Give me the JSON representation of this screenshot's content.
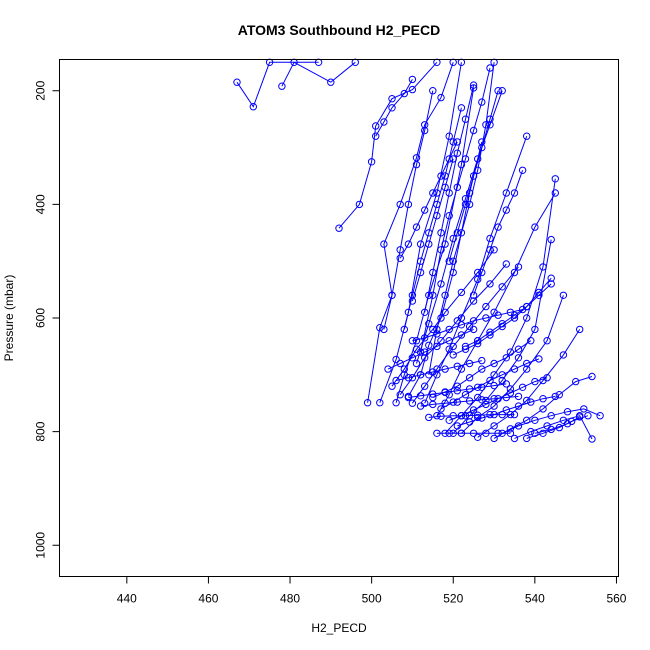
{
  "chart_data": {
    "type": "line",
    "title": "ATOM3 Southbound H2_PECD",
    "xlabel": "H2_PECD",
    "ylabel": "Pressure (mbar)",
    "xlim": [
      423.5,
      560.5
    ],
    "ylim": [
      1055,
      145
    ],
    "y_axis_inverted": true,
    "x_ticks": [
      440,
      460,
      480,
      500,
      520,
      540,
      560
    ],
    "y_ticks": [
      200,
      400,
      600,
      800,
      1000
    ],
    "grid": false,
    "legend": "none",
    "line_color": "#0000ff",
    "marker": "open-circle",
    "series": [
      {
        "x": [
          467,
          471,
          475,
          487
        ],
        "y": [
          185,
          228,
          150,
          150
        ]
      },
      {
        "x": [
          478,
          481,
          490,
          496
        ],
        "y": [
          192,
          150,
          185,
          150
        ]
      },
      {
        "x": [
          492,
          497,
          500,
          501,
          505,
          510,
          516
        ],
        "y": [
          442,
          400,
          325,
          262,
          214,
          198,
          150
        ]
      },
      {
        "x": [
          499,
          502,
          505,
          503,
          507,
          511,
          513,
          517,
          520
        ],
        "y": [
          749,
          617,
          560,
          470,
          400,
          318,
          260,
          212,
          150
        ]
      },
      {
        "x": [
          502,
          506,
          509,
          512,
          516,
          519,
          522
        ],
        "y": [
          749,
          673,
          590,
          470,
          380,
          280,
          150
        ]
      },
      {
        "x": [
          506,
          508,
          511,
          514,
          518,
          522,
          525
        ],
        "y": [
          749,
          700,
          640,
          560,
          470,
          330,
          195
        ]
      },
      {
        "x": [
          509,
          512,
          514,
          517,
          520,
          524,
          527
        ],
        "y": [
          738,
          700,
          648,
          600,
          520,
          380,
          290
        ]
      },
      {
        "x": [
          513,
          516,
          519,
          522,
          526,
          529,
          533,
          538
        ],
        "y": [
          750,
          700,
          655,
          600,
          532,
          460,
          380,
          280
        ]
      },
      {
        "x": [
          516,
          519,
          522,
          526,
          530,
          535,
          540,
          545
        ],
        "y": [
          772,
          735,
          690,
          640,
          590,
          520,
          440,
          380
        ]
      },
      {
        "x": [
          518,
          522,
          526,
          530,
          534,
          538,
          542,
          545
        ],
        "y": [
          803,
          772,
          740,
          700,
          660,
          600,
          510,
          355
        ]
      },
      {
        "x": [
          520,
          524,
          528,
          532,
          536,
          540,
          544
        ],
        "y": [
          803,
          772,
          745,
          710,
          670,
          620,
          462
        ]
      },
      {
        "x": [
          522,
          526,
          530,
          534,
          538,
          543,
          547
        ],
        "y": [
          803,
          775,
          755,
          725,
          690,
          640,
          560
        ]
      },
      {
        "x": [
          526,
          530,
          534,
          538,
          542,
          547,
          551
        ],
        "y": [
          810,
          790,
          770,
          745,
          710,
          665,
          620
        ]
      },
      {
        "x": [
          530,
          534,
          538,
          542,
          546,
          550,
          554
        ],
        "y": [
          812,
          795,
          780,
          760,
          735,
          712,
          703
        ]
      },
      {
        "x": [
          532,
          536,
          540,
          544,
          548,
          552,
          556
        ],
        "y": [
          803,
          790,
          780,
          772,
          765,
          760,
          772
        ]
      },
      {
        "x": [
          535,
          539,
          543,
          547,
          551,
          554
        ],
        "y": [
          812,
          800,
          790,
          780,
          772,
          813
        ]
      },
      {
        "x": [
          538,
          542,
          546,
          549,
          553
        ],
        "y": [
          812,
          803,
          793,
          782,
          772
        ]
      },
      {
        "x": [
          540,
          544,
          548,
          551
        ],
        "y": [
          803,
          796,
          786,
          774
        ]
      },
      {
        "x": [
          505,
          508,
          511,
          515,
          518,
          522,
          526,
          530
        ],
        "y": [
          720,
          690,
          655,
          620,
          590,
          555,
          520,
          480
        ]
      },
      {
        "x": [
          507,
          510,
          513,
          517,
          521,
          525,
          529,
          533
        ],
        "y": [
          735,
          705,
          670,
          640,
          605,
          570,
          540,
          505
        ]
      },
      {
        "x": [
          510,
          513,
          516,
          520,
          524,
          528,
          532,
          536
        ],
        "y": [
          750,
          720,
          690,
          650,
          615,
          580,
          545,
          510
        ]
      },
      {
        "x": [
          511,
          514,
          517,
          520,
          523,
          526,
          529,
          532
        ],
        "y": [
          680,
          610,
          540,
          460,
          390,
          320,
          260,
          200
        ]
      },
      {
        "x": [
          512,
          515,
          517,
          519,
          521,
          523,
          525,
          527,
          529
        ],
        "y": [
          660,
          560,
          480,
          420,
          370,
          320,
          270,
          220,
          160
        ]
      },
      {
        "x": [
          514,
          516,
          518,
          520,
          522,
          524,
          526,
          528,
          530
        ],
        "y": [
          700,
          620,
          560,
          500,
          450,
          400,
          340,
          260,
          150
        ]
      },
      {
        "x": [
          508,
          510,
          512,
          514,
          516,
          518,
          520,
          522
        ],
        "y": [
          620,
          560,
          500,
          450,
          400,
          350,
          290,
          230
        ]
      },
      {
        "x": [
          503,
          505,
          507,
          509,
          511,
          513,
          515
        ],
        "y": [
          620,
          560,
          480,
          400,
          330,
          270,
          200
        ]
      },
      {
        "x": [
          501,
          503,
          505,
          508,
          510
        ],
        "y": [
          280,
          255,
          230,
          205,
          180
        ]
      },
      {
        "x": [
          515,
          518,
          521,
          524,
          527,
          530,
          533,
          536,
          539
        ],
        "y": [
          740,
          730,
          720,
          705,
          690,
          680,
          670,
          655,
          640
        ]
      },
      {
        "x": [
          517,
          520,
          523,
          526,
          529,
          532,
          535,
          538,
          541
        ],
        "y": [
          760,
          748,
          735,
          722,
          710,
          700,
          690,
          680,
          672
        ]
      },
      {
        "x": [
          519,
          522,
          525,
          528,
          531,
          534,
          537,
          540,
          543
        ],
        "y": [
          780,
          772,
          762,
          752,
          742,
          732,
          722,
          712,
          705
        ]
      },
      {
        "x": [
          521,
          524,
          527,
          530,
          533,
          536,
          539,
          542,
          545
        ],
        "y": [
          790,
          783,
          776,
          770,
          762,
          755,
          748,
          742,
          738
        ]
      },
      {
        "x": [
          516,
          519,
          522,
          525,
          528,
          531,
          534
        ],
        "y": [
          803,
          803,
          803,
          803,
          803,
          803,
          803
        ]
      },
      {
        "x": [
          514,
          517,
          520,
          523,
          526,
          529,
          532,
          535
        ],
        "y": [
          775,
          773,
          772,
          772,
          771,
          770,
          770,
          770
        ]
      },
      {
        "x": [
          512,
          515,
          518,
          521,
          524,
          527,
          530,
          533,
          536
        ],
        "y": [
          755,
          752,
          750,
          748,
          746,
          744,
          742,
          740,
          738
        ]
      },
      {
        "x": [
          509,
          512,
          515,
          518,
          521,
          524,
          527,
          530,
          533
        ],
        "y": [
          740,
          737,
          734,
          731,
          728,
          725,
          722,
          719,
          716
        ]
      },
      {
        "x": [
          506,
          509,
          512,
          515,
          518,
          521,
          524,
          527
        ],
        "y": [
          710,
          705,
          700,
          695,
          690,
          685,
          680,
          675
        ]
      },
      {
        "x": [
          504,
          507,
          510,
          513,
          516,
          519,
          522,
          525
        ],
        "y": [
          690,
          680,
          670,
          660,
          650,
          640,
          630,
          620
        ]
      },
      {
        "x": [
          510,
          513,
          516,
          519,
          522,
          525,
          528,
          531,
          534,
          537
        ],
        "y": [
          640,
          635,
          628,
          620,
          612,
          605,
          600,
          595,
          590,
          585
        ]
      },
      {
        "x": [
          523,
          526,
          529,
          532,
          535,
          538,
          541,
          544
        ],
        "y": [
          650,
          640,
          625,
          610,
          595,
          580,
          560,
          540
        ]
      },
      {
        "x": [
          525,
          527,
          529,
          531,
          533,
          535,
          537
        ],
        "y": [
          560,
          520,
          480,
          440,
          410,
          380,
          340
        ]
      },
      {
        "x": [
          519,
          521,
          523,
          525,
          527,
          529,
          531
        ],
        "y": [
          500,
          450,
          400,
          350,
          300,
          250,
          200
        ]
      },
      {
        "x": [
          513,
          515,
          517,
          519,
          521,
          523,
          525
        ],
        "y": [
          590,
          520,
          450,
          380,
          310,
          250,
          190
        ]
      },
      {
        "x": [
          520,
          523,
          526,
          529,
          532,
          535,
          538,
          541,
          544
        ],
        "y": [
          665,
          655,
          645,
          630,
          615,
          600,
          580,
          555,
          530
        ]
      },
      {
        "x": [
          507,
          509,
          511,
          513,
          515,
          517,
          519,
          521
        ],
        "y": [
          495,
          470,
          440,
          410,
          380,
          350,
          320,
          290
        ]
      },
      {
        "x": [
          510,
          512,
          514,
          516,
          518,
          520
        ],
        "y": [
          570,
          520,
          470,
          420,
          370,
          320
        ]
      }
    ]
  }
}
